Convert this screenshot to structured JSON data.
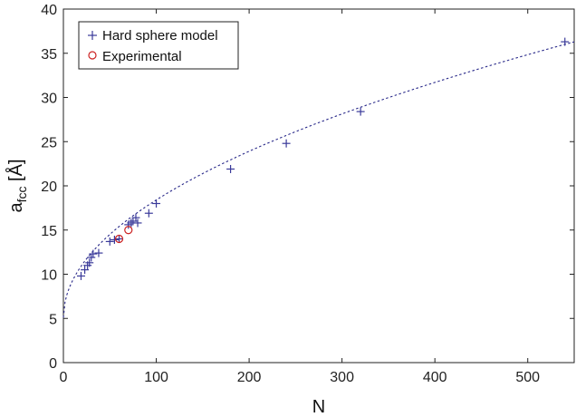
{
  "chart_data": {
    "type": "scatter",
    "title": "",
    "xlabel": "N",
    "ylabel": {
      "main": "a",
      "sub": "fcc",
      "unit": " [Å]"
    },
    "xlim": [
      0,
      550
    ],
    "ylim": [
      0,
      40
    ],
    "xticks": [
      0,
      100,
      200,
      300,
      400,
      500
    ],
    "yticks": [
      0,
      5,
      10,
      15,
      20,
      25,
      30,
      35,
      40
    ],
    "grid": false,
    "legend_position": "top-left",
    "series": [
      {
        "name": "Hard sphere model",
        "marker": "plus",
        "color": "#3a3a9a",
        "points": [
          [
            19,
            9.8
          ],
          [
            23,
            10.5
          ],
          [
            26,
            11.0
          ],
          [
            28,
            11.3
          ],
          [
            30,
            11.9
          ],
          [
            32,
            12.3
          ],
          [
            38,
            12.4
          ],
          [
            50,
            13.7
          ],
          [
            55,
            13.9
          ],
          [
            60,
            14.0
          ],
          [
            70,
            15.6
          ],
          [
            73,
            15.8
          ],
          [
            75,
            16.0
          ],
          [
            78,
            16.4
          ],
          [
            80,
            15.8
          ],
          [
            92,
            16.9
          ],
          [
            100,
            18.0
          ],
          [
            180,
            21.9
          ],
          [
            240,
            24.8
          ],
          [
            320,
            28.4
          ],
          [
            540,
            36.3
          ]
        ]
      },
      {
        "name": "Experimental",
        "marker": "circle",
        "color": "#cc2222",
        "points": [
          [
            60,
            14.0
          ],
          [
            70,
            15.0
          ]
        ]
      }
    ],
    "fit_curve": {
      "style": "dotted",
      "color": "#2a2a8a",
      "formula": "y = 5.1 + 1.33 * sqrt(x)"
    }
  }
}
